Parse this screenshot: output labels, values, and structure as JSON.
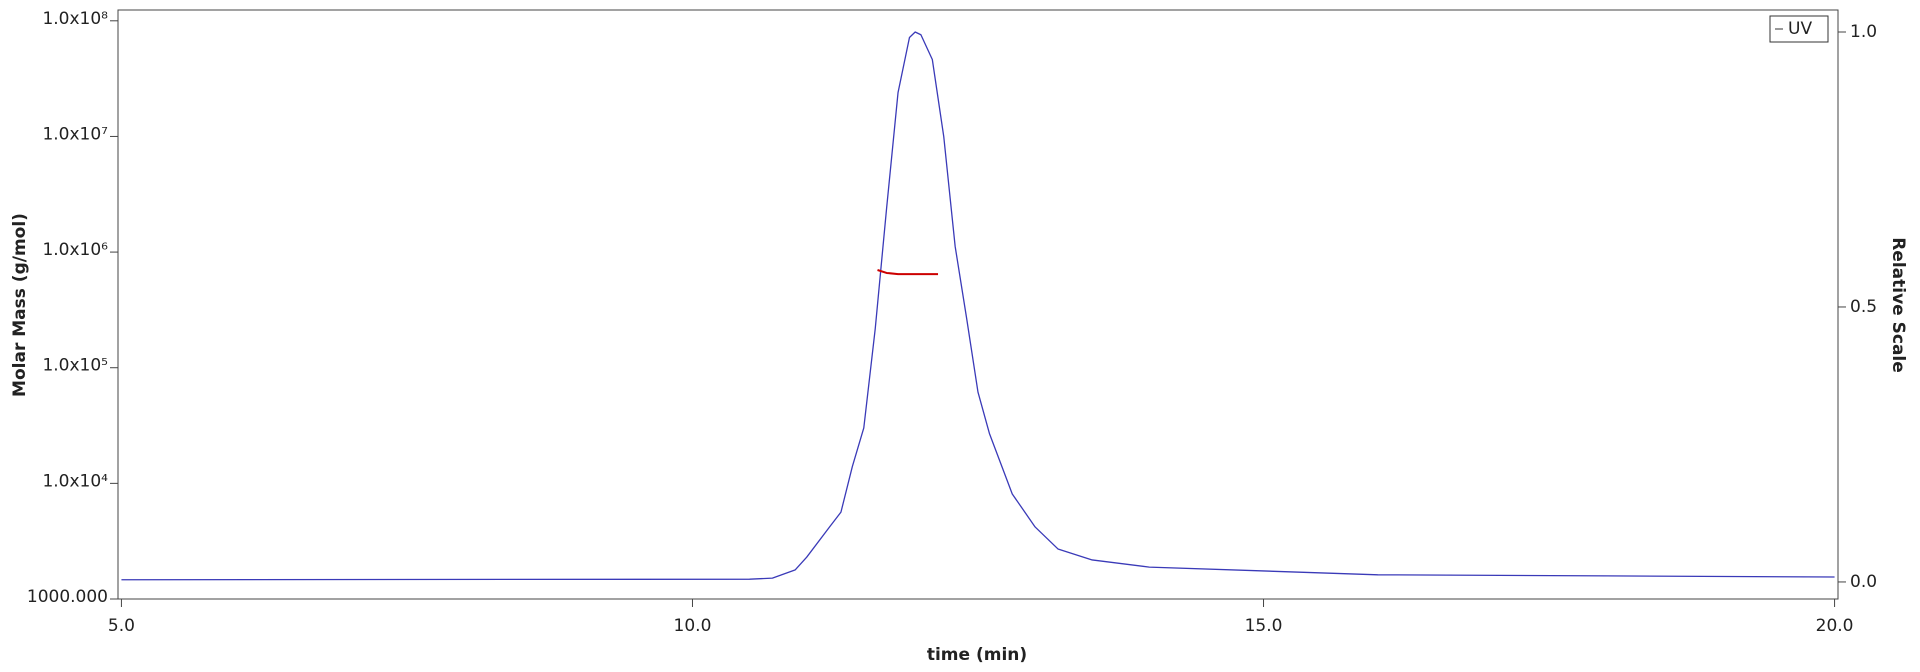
{
  "chart_data": {
    "type": "line",
    "x_label": "time (min)",
    "y_label": "Molar Mass (g/mol)",
    "y2_label": "Relative Scale",
    "xlim": [
      4.97,
      20.03
    ],
    "xticks": [
      {
        "value": 5,
        "label": "5.0"
      },
      {
        "value": 10,
        "label": "10.0"
      },
      {
        "value": 15,
        "label": "15.0"
      },
      {
        "value": 20,
        "label": "20.0"
      }
    ],
    "ylim": [
      1000,
      124000000
    ],
    "log_y": true,
    "yticks": [
      {
        "value": 1000,
        "label": "1000.000"
      },
      {
        "value": 10000,
        "label": "1.0x10⁴"
      },
      {
        "value": 100000,
        "label": "1.0x10⁵"
      },
      {
        "value": 1000000,
        "label": "1.0x10⁶"
      },
      {
        "value": 10000000,
        "label": "1.0x10⁷"
      },
      {
        "value": 100000000,
        "label": "1.0x10⁸"
      }
    ],
    "y2lim": [
      -0.031,
      1.04
    ],
    "y2ticks": [
      {
        "value": 0,
        "label": "0.0"
      },
      0.5,
      {
        "value": 1,
        "label": "1.0"
      }
    ],
    "legend": "upper right",
    "series": [
      {
        "name": "UV",
        "color": "#3a3ab8",
        "axis": "y2",
        "x": [
          5.0,
          10.5,
          10.7,
          10.9,
          11.0,
          11.2,
          11.3,
          11.4,
          11.5,
          11.6,
          11.7,
          11.8,
          11.9,
          11.95,
          12.0,
          12.1,
          12.2,
          12.3,
          12.4,
          12.5,
          12.6,
          12.8,
          13.0,
          13.2,
          13.5,
          14.0,
          15.0,
          16.0,
          18.0,
          20.0
        ],
        "values": [
          0.004,
          0.005,
          0.007,
          0.022,
          0.045,
          0.1,
          0.127,
          0.21,
          0.28,
          0.46,
          0.68,
          0.89,
          0.99,
          1.0,
          0.995,
          0.95,
          0.81,
          0.61,
          0.48,
          0.345,
          0.27,
          0.16,
          0.1,
          0.06,
          0.04,
          0.027,
          0.02,
          0.013,
          0.011,
          0.009
        ]
      },
      {
        "color": "#cc0000",
        "x": [
          11.62,
          11.7,
          11.8,
          12.0,
          12.15
        ],
        "values": [
          700000,
          660000,
          645000,
          645000,
          645000
        ]
      }
    ]
  }
}
